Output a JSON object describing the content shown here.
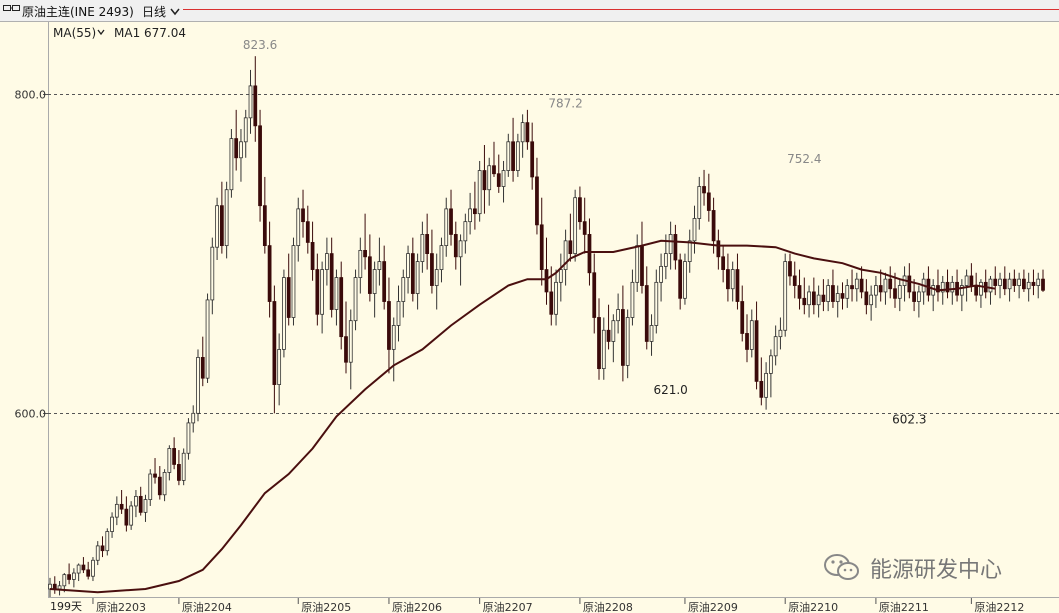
{
  "toolbar": {
    "symbol_label": "原油主连(INE 2493)",
    "period_label": "日线"
  },
  "indicator": {
    "ma_label": "MA(55)",
    "ma1_label": "MA1 677.04",
    "ma_color": "#4a0f0f"
  },
  "watermark": {
    "text": "能源研发中心"
  },
  "chart_data": {
    "type": "candlestick",
    "title": "",
    "ylim": [
      485,
      845
    ],
    "y_ticks": [
      600,
      800
    ],
    "y_tick_labels": [
      "600.0",
      "800.0"
    ],
    "grid": "dashed horizontal at ticks",
    "x_labels": [
      "原油2203",
      "原油2204",
      "原油2205",
      "原油2206",
      "原油2207",
      "原油2208",
      "原油2209",
      "原油2210",
      "原油2211",
      "原油2212"
    ],
    "x_label_index": [
      9,
      27,
      52,
      71,
      90,
      111,
      133,
      154,
      173,
      193
    ],
    "bar_count_label": "199天",
    "annotations": [
      {
        "text": "823.6",
        "index": 44,
        "value": 823.6,
        "position": "above"
      },
      {
        "text": "787.2",
        "index": 108,
        "value": 787.2,
        "position": "above"
      },
      {
        "text": "621.0",
        "index": 130,
        "value": 621.0,
        "position": "below"
      },
      {
        "text": "752.4",
        "index": 158,
        "value": 752.4,
        "position": "above"
      },
      {
        "text": "602.3",
        "index": 180,
        "value": 602.3,
        "position": "below"
      }
    ],
    "ohlc": [
      [
        490,
        497,
        485,
        493
      ],
      [
        493,
        498,
        487,
        490
      ],
      [
        490,
        495,
        486,
        492
      ],
      [
        492,
        500,
        488,
        499
      ],
      [
        499,
        506,
        493,
        496
      ],
      [
        496,
        503,
        491,
        500
      ],
      [
        500,
        506,
        495,
        505
      ],
      [
        505,
        510,
        500,
        502
      ],
      [
        502,
        507,
        496,
        498
      ],
      [
        498,
        510,
        495,
        508
      ],
      [
        508,
        520,
        505,
        517
      ],
      [
        517,
        523,
        510,
        514
      ],
      [
        514,
        528,
        511,
        526
      ],
      [
        526,
        538,
        522,
        535
      ],
      [
        535,
        548,
        530,
        543
      ],
      [
        543,
        552,
        537,
        540
      ],
      [
        540,
        548,
        526,
        530
      ],
      [
        530,
        545,
        527,
        542
      ],
      [
        542,
        552,
        535,
        548
      ],
      [
        548,
        554,
        536,
        538
      ],
      [
        538,
        549,
        532,
        546
      ],
      [
        546,
        565,
        542,
        562
      ],
      [
        562,
        572,
        556,
        560
      ],
      [
        560,
        567,
        546,
        549
      ],
      [
        549,
        565,
        545,
        563
      ],
      [
        563,
        580,
        558,
        578
      ],
      [
        578,
        585,
        565,
        568
      ],
      [
        568,
        577,
        555,
        558
      ],
      [
        558,
        578,
        555,
        575
      ],
      [
        575,
        597,
        571,
        594
      ],
      [
        594,
        605,
        588,
        600
      ],
      [
        600,
        640,
        595,
        635
      ],
      [
        635,
        648,
        617,
        622
      ],
      [
        622,
        675,
        619,
        671
      ],
      [
        671,
        710,
        662,
        704
      ],
      [
        704,
        735,
        696,
        730
      ],
      [
        730,
        745,
        700,
        705
      ],
      [
        705,
        745,
        697,
        740
      ],
      [
        740,
        778,
        735,
        772
      ],
      [
        772,
        790,
        752,
        760
      ],
      [
        760,
        778,
        745,
        770
      ],
      [
        770,
        790,
        760,
        785
      ],
      [
        785,
        815,
        775,
        805
      ],
      [
        805,
        823.6,
        770,
        780
      ],
      [
        780,
        790,
        720,
        730
      ],
      [
        730,
        748,
        700,
        705
      ],
      [
        705,
        720,
        660,
        670
      ],
      [
        670,
        680,
        600,
        618
      ],
      [
        618,
        650,
        605,
        640
      ],
      [
        640,
        690,
        635,
        685
      ],
      [
        685,
        700,
        655,
        660
      ],
      [
        660,
        710,
        655,
        705
      ],
      [
        705,
        735,
        695,
        728
      ],
      [
        728,
        740,
        710,
        720
      ],
      [
        720,
        730,
        700,
        707
      ],
      [
        707,
        720,
        683,
        690
      ],
      [
        690,
        700,
        655,
        662
      ],
      [
        662,
        695,
        650,
        690
      ],
      [
        690,
        710,
        680,
        700
      ],
      [
        700,
        710,
        660,
        665
      ],
      [
        665,
        690,
        655,
        685
      ],
      [
        685,
        695,
        640,
        648
      ],
      [
        648,
        670,
        625,
        632
      ],
      [
        632,
        665,
        615,
        658
      ],
      [
        658,
        690,
        652,
        685
      ],
      [
        685,
        710,
        675,
        702
      ],
      [
        702,
        725,
        690,
        698
      ],
      [
        698,
        712,
        670,
        675
      ],
      [
        675,
        695,
        660,
        690
      ],
      [
        690,
        710,
        680,
        695
      ],
      [
        695,
        705,
        665,
        670
      ],
      [
        670,
        685,
        625,
        640
      ],
      [
        640,
        660,
        620,
        655
      ],
      [
        655,
        680,
        645,
        670
      ],
      [
        670,
        690,
        660,
        685
      ],
      [
        685,
        705,
        675,
        700
      ],
      [
        700,
        710,
        670,
        675
      ],
      [
        675,
        700,
        665,
        695
      ],
      [
        695,
        720,
        688,
        712
      ],
      [
        712,
        725,
        690,
        700
      ],
      [
        700,
        715,
        675,
        680
      ],
      [
        680,
        700,
        665,
        690
      ],
      [
        690,
        710,
        682,
        705
      ],
      [
        705,
        735,
        698,
        728
      ],
      [
        728,
        740,
        705,
        712
      ],
      [
        712,
        720,
        690,
        698
      ],
      [
        698,
        712,
        680,
        708
      ],
      [
        708,
        725,
        700,
        720
      ],
      [
        720,
        738,
        712,
        728
      ],
      [
        728,
        745,
        715,
        725
      ],
      [
        725,
        758,
        720,
        752
      ],
      [
        752,
        768,
        725,
        740
      ],
      [
        740,
        760,
        730,
        755
      ],
      [
        755,
        770,
        748,
        750
      ],
      [
        750,
        762,
        738,
        742
      ],
      [
        742,
        758,
        732,
        752
      ],
      [
        752,
        775,
        748,
        770
      ],
      [
        770,
        785,
        745,
        752
      ],
      [
        752,
        775,
        748,
        770
      ],
      [
        770,
        787.2,
        760,
        782
      ],
      [
        782,
        790,
        765,
        770
      ],
      [
        770,
        782,
        740,
        748
      ],
      [
        748,
        760,
        712,
        718
      ],
      [
        718,
        735,
        680,
        690
      ],
      [
        690,
        710,
        668,
        676
      ],
      [
        676,
        692,
        655,
        662
      ],
      [
        662,
        690,
        655,
        682
      ],
      [
        682,
        700,
        670,
        690
      ],
      [
        690,
        715,
        680,
        708
      ],
      [
        708,
        725,
        695,
        700
      ],
      [
        700,
        740,
        695,
        735
      ],
      [
        735,
        742,
        715,
        720
      ],
      [
        720,
        735,
        700,
        712
      ],
      [
        712,
        722,
        680,
        688
      ],
      [
        688,
        700,
        650,
        660
      ],
      [
        660,
        672,
        621.0,
        628
      ],
      [
        628,
        660,
        621.0,
        652
      ],
      [
        652,
        668,
        640,
        645
      ],
      [
        645,
        662,
        632,
        658
      ],
      [
        658,
        675,
        650,
        665
      ],
      [
        665,
        680,
        620,
        630
      ],
      [
        630,
        665,
        622,
        660
      ],
      [
        660,
        690,
        655,
        682
      ],
      [
        682,
        712,
        676,
        705
      ],
      [
        705,
        720,
        675,
        680
      ],
      [
        680,
        692,
        640,
        645
      ],
      [
        645,
        662,
        636,
        655
      ],
      [
        655,
        690,
        650,
        682
      ],
      [
        682,
        700,
        670,
        692
      ],
      [
        692,
        712,
        684,
        700
      ],
      [
        700,
        720,
        690,
        712
      ],
      [
        712,
        718,
        690,
        696
      ],
      [
        696,
        700,
        665,
        672
      ],
      [
        672,
        700,
        668,
        695
      ],
      [
        695,
        715,
        688,
        708
      ],
      [
        708,
        730,
        700,
        722
      ],
      [
        722,
        748,
        715,
        742
      ],
      [
        742,
        752.4,
        730,
        738
      ],
      [
        738,
        750,
        720,
        727
      ],
      [
        727,
        735,
        700,
        708
      ],
      [
        708,
        715,
        690,
        698
      ],
      [
        698,
        705,
        682,
        690
      ],
      [
        690,
        700,
        670,
        678
      ],
      [
        678,
        695,
        670,
        690
      ],
      [
        690,
        700,
        665,
        670
      ],
      [
        670,
        680,
        645,
        650
      ],
      [
        650,
        662,
        632,
        640
      ],
      [
        640,
        665,
        635,
        658
      ],
      [
        658,
        670,
        615,
        620
      ],
      [
        620,
        635,
        605,
        610
      ],
      [
        610,
        632,
        602.3,
        625
      ],
      [
        625,
        640,
        610,
        636
      ],
      [
        636,
        655,
        630,
        648
      ],
      [
        648,
        660,
        640,
        652
      ],
      [
        652,
        700,
        648,
        695
      ],
      [
        695,
        700,
        680,
        686
      ],
      [
        686,
        695,
        672,
        680
      ],
      [
        680,
        690,
        665,
        672
      ],
      [
        672,
        685,
        662,
        668
      ],
      [
        668,
        680,
        660,
        676
      ],
      [
        676,
        685,
        662,
        668
      ],
      [
        668,
        680,
        660,
        674
      ],
      [
        674,
        684,
        664,
        670
      ],
      [
        670,
        684,
        664,
        680
      ],
      [
        680,
        690,
        666,
        670
      ],
      [
        670,
        680,
        660,
        675
      ],
      [
        675,
        682,
        665,
        672
      ],
      [
        672,
        684,
        666,
        680
      ],
      [
        680,
        690,
        670,
        678
      ],
      [
        678,
        688,
        670,
        684
      ],
      [
        684,
        692,
        672,
        676
      ],
      [
        676,
        684,
        662,
        668
      ],
      [
        668,
        680,
        658,
        674
      ],
      [
        674,
        686,
        666,
        680
      ],
      [
        680,
        690,
        670,
        676
      ],
      [
        676,
        688,
        668,
        684
      ],
      [
        684,
        692,
        672,
        678
      ],
      [
        678,
        688,
        666,
        672
      ],
      [
        672,
        684,
        664,
        680
      ],
      [
        680,
        692,
        670,
        686
      ],
      [
        686,
        694,
        672,
        676
      ],
      [
        676,
        684,
        664,
        670
      ],
      [
        670,
        680,
        660,
        676
      ],
      [
        676,
        688,
        668,
        684
      ],
      [
        684,
        692,
        670,
        674
      ],
      [
        674,
        684,
        664,
        680
      ],
      [
        680,
        690,
        670,
        676
      ],
      [
        676,
        686,
        668,
        682
      ],
      [
        682,
        690,
        672,
        676
      ],
      [
        676,
        686,
        668,
        682
      ],
      [
        682,
        690,
        670,
        674
      ],
      [
        674,
        684,
        664,
        680
      ],
      [
        680,
        690,
        670,
        686
      ],
      [
        686,
        694,
        676,
        680
      ],
      [
        680,
        688,
        670,
        674
      ],
      [
        674,
        684,
        666,
        682
      ],
      [
        682,
        690,
        672,
        676
      ],
      [
        676,
        686,
        668,
        684
      ],
      [
        684,
        692,
        674,
        680
      ],
      [
        680,
        688,
        672,
        684
      ],
      [
        684,
        692,
        674,
        678
      ],
      [
        678,
        688,
        670,
        684
      ],
      [
        684,
        690,
        676,
        680
      ],
      [
        680,
        688,
        672,
        684
      ],
      [
        684,
        690,
        676,
        678
      ],
      [
        678,
        688,
        670,
        682
      ],
      [
        682,
        690,
        674,
        680
      ],
      [
        680,
        688,
        672,
        684
      ],
      [
        684,
        690,
        676,
        677.04
      ]
    ],
    "ma55": [
      [
        0,
        490
      ],
      [
        10,
        488
      ],
      [
        20,
        490
      ],
      [
        27,
        495
      ],
      [
        32,
        502
      ],
      [
        36,
        515
      ],
      [
        40,
        530
      ],
      [
        45,
        550
      ],
      [
        50,
        562
      ],
      [
        55,
        578
      ],
      [
        60,
        598
      ],
      [
        66,
        615
      ],
      [
        72,
        630
      ],
      [
        78,
        640
      ],
      [
        84,
        655
      ],
      [
        90,
        668
      ],
      [
        96,
        680
      ],
      [
        100,
        684
      ],
      [
        104,
        684
      ],
      [
        106,
        688
      ],
      [
        109,
        697
      ],
      [
        112,
        701
      ],
      [
        118,
        701
      ],
      [
        124,
        705
      ],
      [
        128,
        708
      ],
      [
        134,
        707
      ],
      [
        140,
        705
      ],
      [
        146,
        705
      ],
      [
        152,
        704
      ],
      [
        156,
        700
      ],
      [
        160,
        697
      ],
      [
        166,
        694
      ],
      [
        170,
        690
      ],
      [
        174,
        688
      ],
      [
        178,
        684
      ],
      [
        182,
        681
      ],
      [
        186,
        677
      ],
      [
        190,
        678
      ],
      [
        194,
        680
      ],
      [
        198,
        678
      ]
    ]
  }
}
